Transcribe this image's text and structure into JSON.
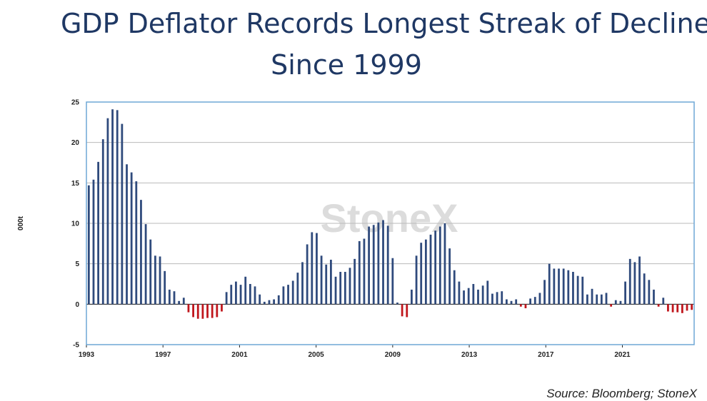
{
  "title": {
    "line1": "GDP Deflator Records Longest Streak of Decline",
    "line2": "Since 1999"
  },
  "source": "Source: Bloomberg; StoneX",
  "watermark": "StoneX",
  "colors": {
    "positive": "#2f4a7c",
    "negative": "#c0161c",
    "frame": "#6fa7d6",
    "title": "#1f3864",
    "grid": "#b9b9b9"
  },
  "chart_data": {
    "type": "bar",
    "ylabel": "000t",
    "ylim": [
      -5,
      25
    ],
    "yticks": [
      -5,
      0,
      5,
      10,
      15,
      20,
      25
    ],
    "xticks": [
      1993,
      1997,
      2001,
      2005,
      2009,
      2013,
      2017,
      2021
    ],
    "grid": true,
    "x_start": 1993.0,
    "x_end": 2024.75,
    "frequency": "quarterly",
    "values": [
      14.7,
      15.4,
      17.6,
      20.4,
      23.0,
      24.1,
      24.0,
      22.3,
      17.3,
      16.3,
      15.2,
      12.9,
      9.9,
      8.0,
      6.0,
      5.9,
      4.1,
      1.8,
      1.6,
      0.4,
      0.8,
      -1.0,
      -1.6,
      -1.8,
      -1.8,
      -1.7,
      -1.7,
      -1.6,
      -0.9,
      1.5,
      2.4,
      2.8,
      2.4,
      3.4,
      2.5,
      2.2,
      1.2,
      0.3,
      0.5,
      0.6,
      1.1,
      2.2,
      2.4,
      2.9,
      3.9,
      5.2,
      7.4,
      8.9,
      8.8,
      6.0,
      4.9,
      5.5,
      3.4,
      4.0,
      4.0,
      4.5,
      5.6,
      7.8,
      8.1,
      9.6,
      9.8,
      10.1,
      10.4,
      9.7,
      5.7,
      0.2,
      -1.5,
      -1.6,
      1.8,
      6.0,
      7.6,
      8.0,
      8.6,
      9.1,
      9.6,
      10.0,
      6.9,
      4.2,
      2.8,
      1.7,
      2.0,
      2.5,
      1.8,
      2.3,
      2.9,
      1.3,
      1.5,
      1.6,
      0.6,
      0.4,
      0.6,
      -0.3,
      -0.5,
      0.7,
      0.9,
      1.4,
      3.0,
      5.0,
      4.4,
      4.4,
      4.4,
      4.2,
      4.0,
      3.5,
      3.4,
      1.2,
      1.9,
      1.2,
      1.2,
      1.4,
      -0.3,
      0.5,
      0.4,
      2.8,
      5.6,
      5.2,
      5.9,
      3.8,
      3.0,
      1.8,
      -0.3,
      0.8,
      -0.9,
      -1.0,
      -1.0,
      -1.1,
      -0.8,
      -0.7
    ]
  }
}
